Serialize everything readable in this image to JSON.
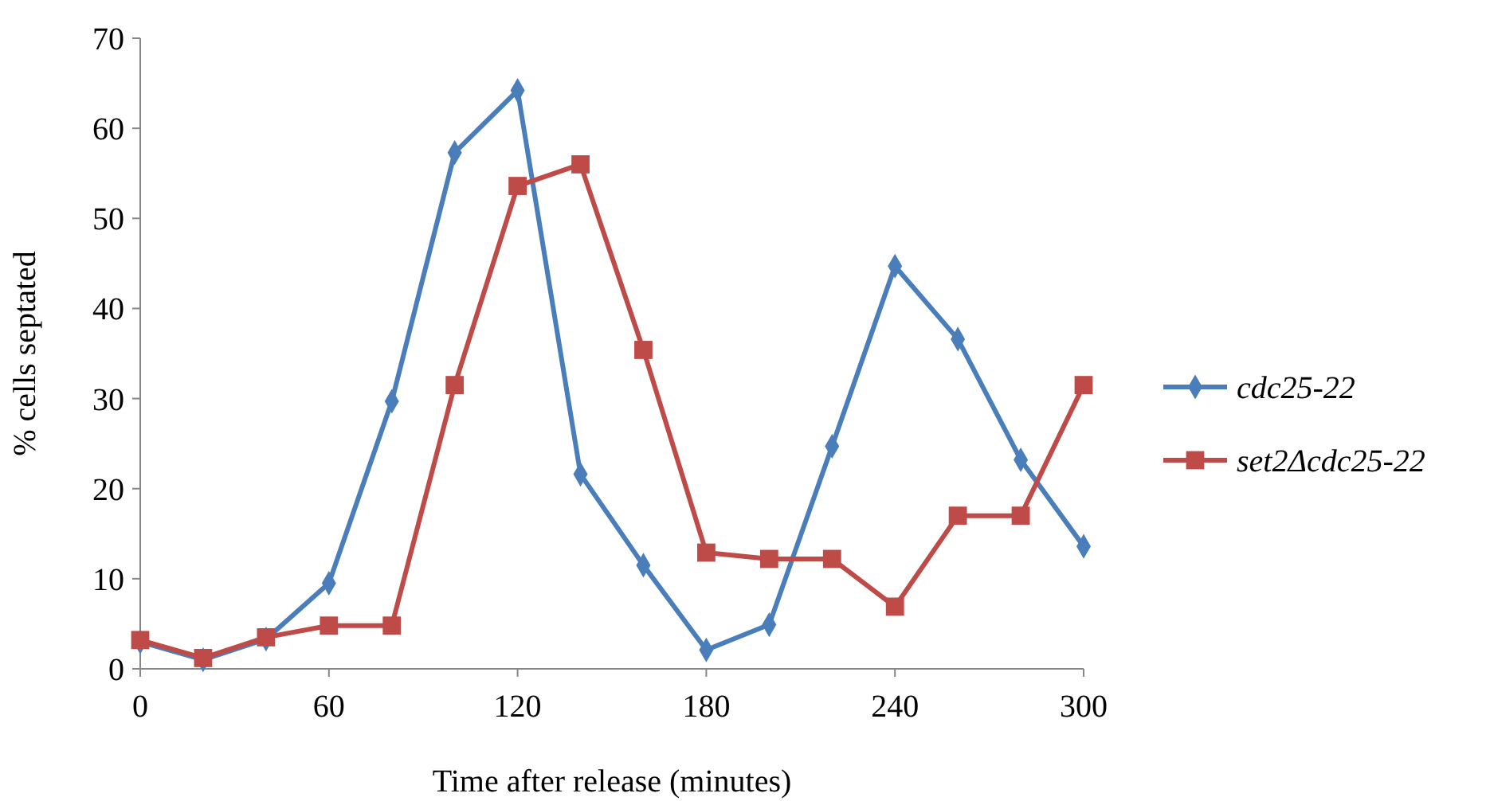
{
  "chart_data": {
    "type": "line",
    "xlabel": "Time after release (minutes)",
    "ylabel": "% cells septated",
    "x": [
      0,
      20,
      40,
      60,
      80,
      100,
      120,
      140,
      160,
      180,
      200,
      220,
      240,
      260,
      280,
      300
    ],
    "xlim": [
      0,
      300
    ],
    "xticks": [
      0,
      60,
      120,
      180,
      240,
      300
    ],
    "ylim": [
      0,
      70
    ],
    "yticks": [
      0,
      10,
      20,
      30,
      40,
      50,
      60,
      70
    ],
    "grid": false,
    "legend": "right",
    "line_style": "solid",
    "series": [
      {
        "name": "cdc25-22",
        "color": "#4a7ebb",
        "marker": "diamond",
        "values": [
          3,
          1,
          3.3,
          9.5,
          29.7,
          57.3,
          64.2,
          21.6,
          11.5,
          2.1,
          4.9,
          24.7,
          44.7,
          36.6,
          23.2,
          13.6
        ]
      },
      {
        "name": "set2Δcdc25-22",
        "color": "#be4b48",
        "marker": "square",
        "values": [
          3.2,
          1.2,
          3.5,
          4.8,
          4.8,
          31.5,
          53.6,
          56,
          35.4,
          12.9,
          12.2,
          12.2,
          6.9,
          17,
          17,
          31.5
        ]
      }
    ]
  }
}
